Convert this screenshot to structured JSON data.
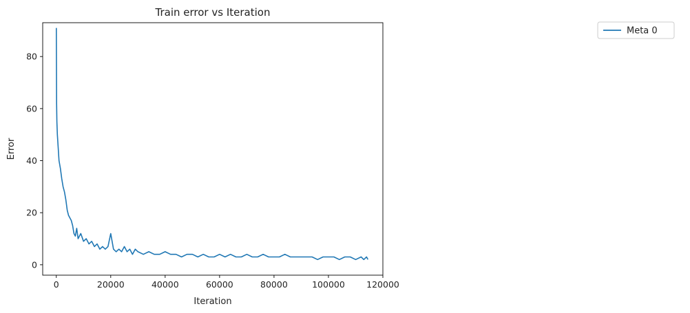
{
  "chart_data": {
    "type": "line",
    "title": "Train error vs Iteration",
    "xlabel": "Iteration",
    "ylabel": "Error",
    "xlim": [
      -5000,
      120000
    ],
    "ylim": [
      -4,
      93
    ],
    "xticks": [
      0,
      20000,
      40000,
      60000,
      80000,
      100000,
      120000
    ],
    "yticks": [
      0,
      20,
      40,
      60,
      80
    ],
    "grid": false,
    "legend_position": "outside-top-right",
    "series": [
      {
        "name": "Meta 0",
        "color": "#1f77b4",
        "x": [
          0,
          100,
          200,
          400,
          700,
          1000,
          1500,
          2000,
          2500,
          3000,
          3500,
          4000,
          4500,
          5000,
          5500,
          6000,
          6500,
          7000,
          7500,
          8000,
          9000,
          10000,
          11000,
          12000,
          13000,
          14000,
          15000,
          16000,
          17000,
          18000,
          19000,
          20000,
          21000,
          22000,
          23000,
          24000,
          25000,
          26000,
          27000,
          28000,
          29000,
          30000,
          32000,
          34000,
          36000,
          38000,
          40000,
          42000,
          44000,
          46000,
          48000,
          50000,
          52000,
          54000,
          56000,
          58000,
          60000,
          62000,
          64000,
          66000,
          68000,
          70000,
          72000,
          74000,
          76000,
          78000,
          80000,
          82000,
          84000,
          86000,
          88000,
          90000,
          92000,
          94000,
          96000,
          98000,
          100000,
          102000,
          104000,
          106000,
          108000,
          110000,
          112000,
          113000,
          114000,
          114500
        ],
        "y": [
          91,
          62,
          55,
          50,
          45,
          40,
          37,
          33,
          30,
          28,
          25,
          21,
          19,
          18,
          17,
          15,
          12,
          11,
          14,
          10,
          12,
          9,
          10,
          8,
          9,
          7,
          8,
          6,
          7,
          6,
          7,
          12,
          6,
          5,
          6,
          5,
          7,
          5,
          6,
          4,
          6,
          5,
          4,
          5,
          4,
          4,
          5,
          4,
          4,
          3,
          4,
          4,
          3,
          4,
          3,
          3,
          4,
          3,
          4,
          3,
          3,
          4,
          3,
          3,
          4,
          3,
          3,
          3,
          4,
          3,
          3,
          3,
          3,
          3,
          2,
          3,
          3,
          3,
          2,
          3,
          3,
          2,
          3,
          2,
          3,
          2
        ]
      }
    ]
  }
}
